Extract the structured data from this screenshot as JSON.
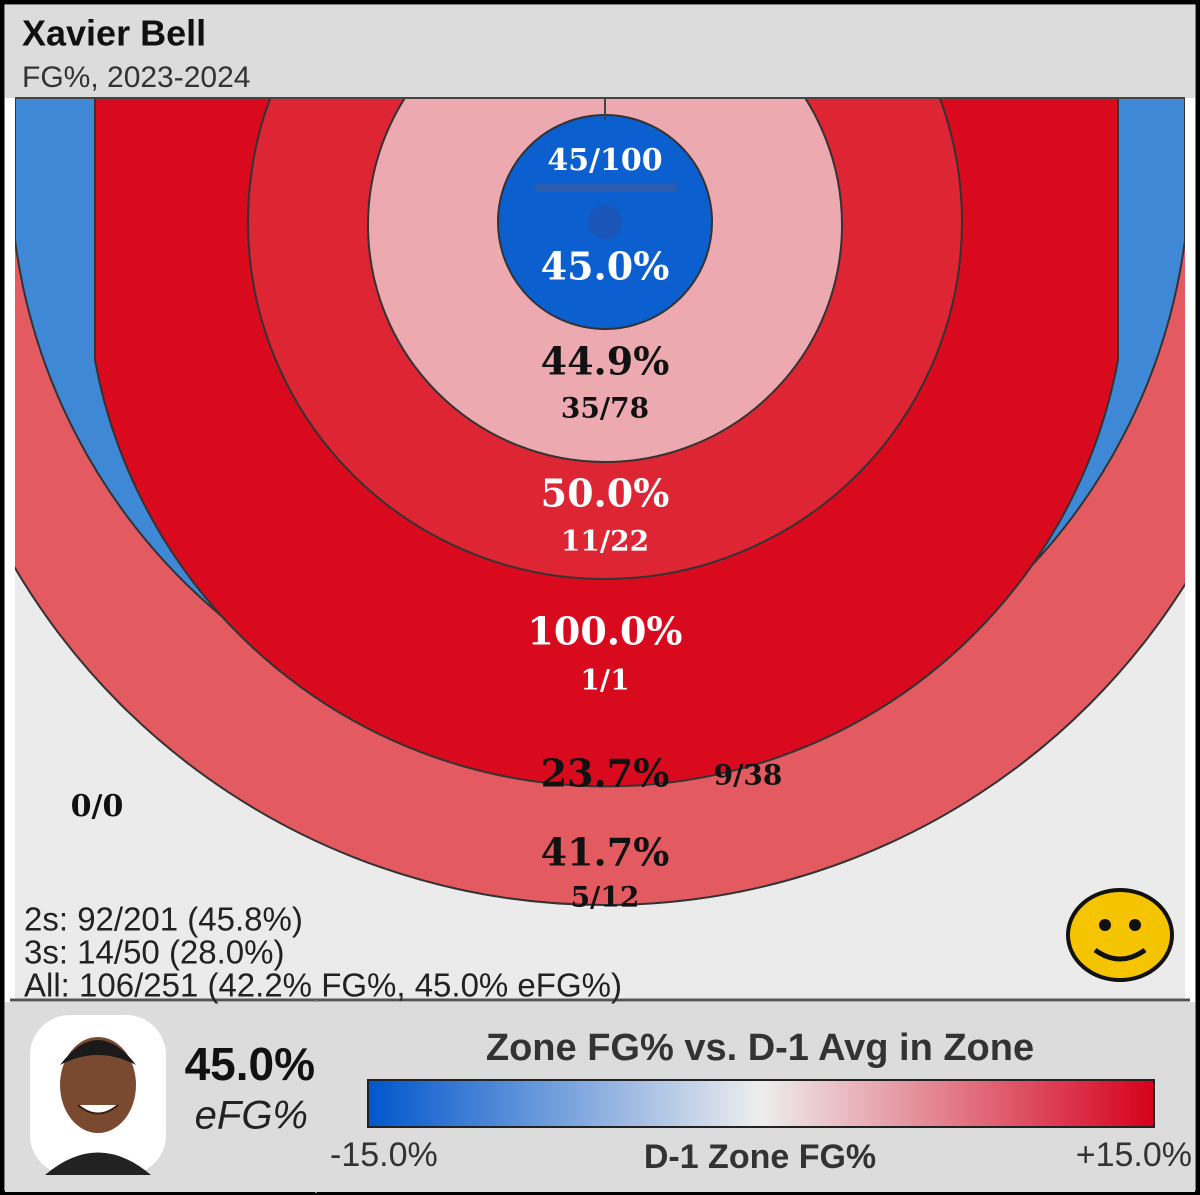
{
  "header": {
    "title": "Xavier Bell",
    "subtitle": "FG%, 2023-2024"
  },
  "zones": [
    {
      "pct": "45.0%",
      "shots": "45/100",
      "color": "#0b5fcf"
    },
    {
      "pct": "44.9%",
      "shots": "35/78",
      "color": "#ecaab0"
    },
    {
      "pct": "50.0%",
      "shots": "11/22",
      "color": "#dd2533"
    },
    {
      "pct": "100.0%",
      "shots": "1/1",
      "color": "#d90a1e"
    },
    {
      "pct": "23.7%",
      "shots": "9/38",
      "color": "#3f88d6"
    },
    {
      "pct": "41.7%",
      "shots": "5/12",
      "color": "#e35a61"
    }
  ],
  "corner": {
    "shots": "0/0"
  },
  "summary": [
    "2s: 92/201 (45.8%)",
    "3s: 14/50 (28.0%)",
    "All: 106/251 (42.2% FG%, 45.0% eFG%)"
  ],
  "player": {
    "efg": "45.0%",
    "label": "eFG%"
  },
  "legend": {
    "title": "Zone FG% vs. D-1 Avg in Zone",
    "min": "-15.0%",
    "mid": "D-1 Zone FG%",
    "max": "+15.0%",
    "colors": [
      "#0056cc",
      "#eeeeee",
      "#d6001c"
    ]
  }
}
